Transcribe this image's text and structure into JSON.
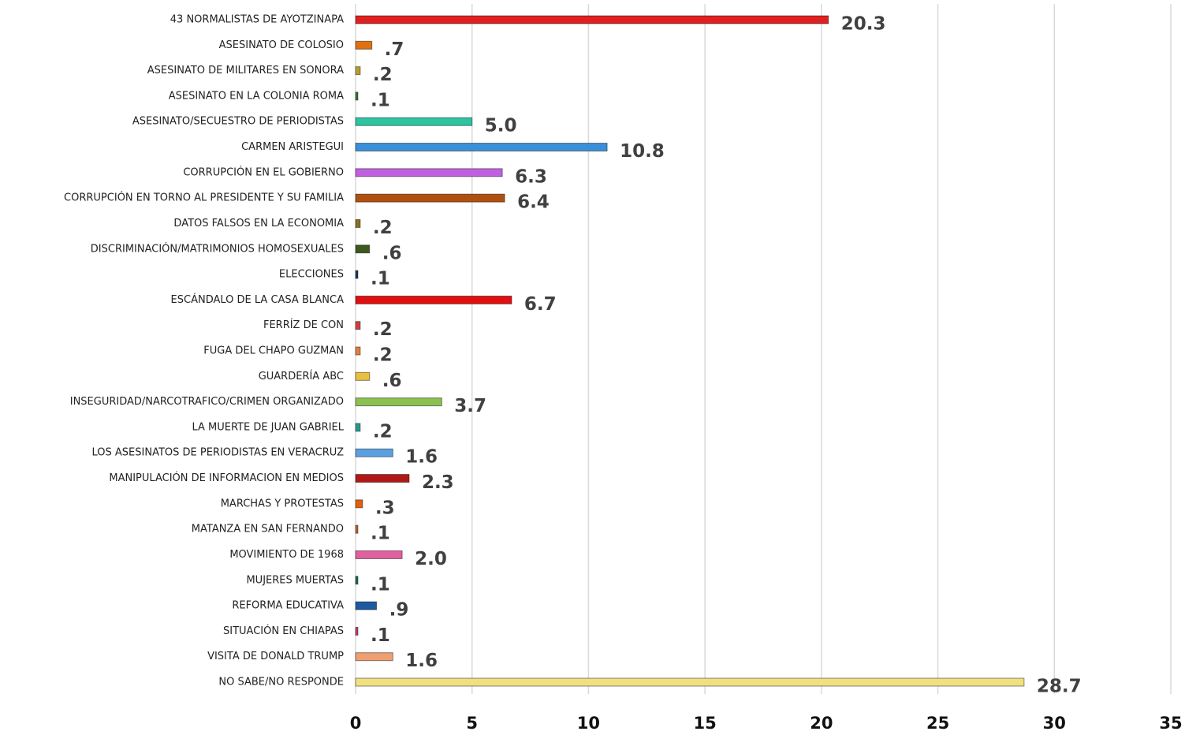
{
  "chart_data": {
    "type": "bar",
    "orientation": "horizontal",
    "categories": [
      "43 NORMALISTAS DE AYOTZINAPA",
      "ASESINATO DE COLOSIO",
      "ASESINATO DE MILITARES EN SONORA",
      "ASESINATO EN LA COLONIA ROMA",
      "ASESINATO/SECUESTRO DE PERIODISTAS",
      "CARMEN ARISTEGUI",
      "CORRUPCIÓN EN EL GOBIERNO",
      "CORRUPCIÓN EN TORNO AL PRESIDENTE Y SU FAMILIA",
      "DATOS FALSOS EN LA ECONOMIA",
      "DISCRIMINACIÓN/MATRIMONIOS HOMOSEXUALES",
      "ELECCIONES",
      "ESCÁNDALO DE LA CASA BLANCA",
      "FERRÍZ DE CON",
      "FUGA DEL CHAPO GUZMAN",
      "GUARDERÍA ABC",
      "INSEGURIDAD/NARCOTRAFICO/CRIMEN ORGANIZADO",
      "LA MUERTE DE JUAN GABRIEL",
      "LOS ASESINATOS DE PERIODISTAS EN VERACRUZ",
      "MANIPULACIÓN DE INFORMACION EN MEDIOS",
      "MARCHAS Y PROTESTAS",
      "MATANZA EN SAN FERNANDO",
      "MOVIMIENTO DE 1968",
      "MUJERES MUERTAS",
      "REFORMA EDUCATIVA",
      "SITUACIÓN EN CHIAPAS",
      "VISITA DE DONALD TRUMP",
      "NO SABE/NO RESPONDE"
    ],
    "values": [
      20.3,
      0.7,
      0.2,
      0.1,
      5.0,
      10.8,
      6.3,
      6.4,
      0.2,
      0.6,
      0.1,
      6.7,
      0.2,
      0.2,
      0.6,
      3.7,
      0.2,
      1.6,
      2.3,
      0.3,
      0.1,
      2.0,
      0.1,
      0.9,
      0.1,
      1.6,
      28.7
    ],
    "value_labels": [
      "20.3",
      ".7",
      ".2",
      ".1",
      "5.0",
      "10.8",
      "6.3",
      "6.4",
      ".2",
      ".6",
      ".1",
      "6.7",
      ".2",
      ".2",
      ".6",
      "3.7",
      ".2",
      "1.6",
      "2.3",
      ".3",
      ".1",
      "2.0",
      ".1",
      ".9",
      ".1",
      "1.6",
      "28.7"
    ],
    "colors": [
      "#e02020",
      "#e07010",
      "#b8a030",
      "#2e7d32",
      "#2ec4a0",
      "#3a8fd8",
      "#c060e0",
      "#b05010",
      "#8a7020",
      "#3d5a1e",
      "#1a3a5a",
      "#e01010",
      "#d04040",
      "#e08040",
      "#e8c040",
      "#8cc050",
      "#2a9a8a",
      "#5aa0e0",
      "#b01818",
      "#e06010",
      "#c06030",
      "#e060a0",
      "#1a6a5a",
      "#1e5aa0",
      "#c04060",
      "#f0a070",
      "#f0e080"
    ],
    "xlim": [
      0,
      35
    ],
    "xticks": [
      0,
      5,
      10,
      15,
      20,
      25,
      30,
      35
    ],
    "grid": true
  }
}
